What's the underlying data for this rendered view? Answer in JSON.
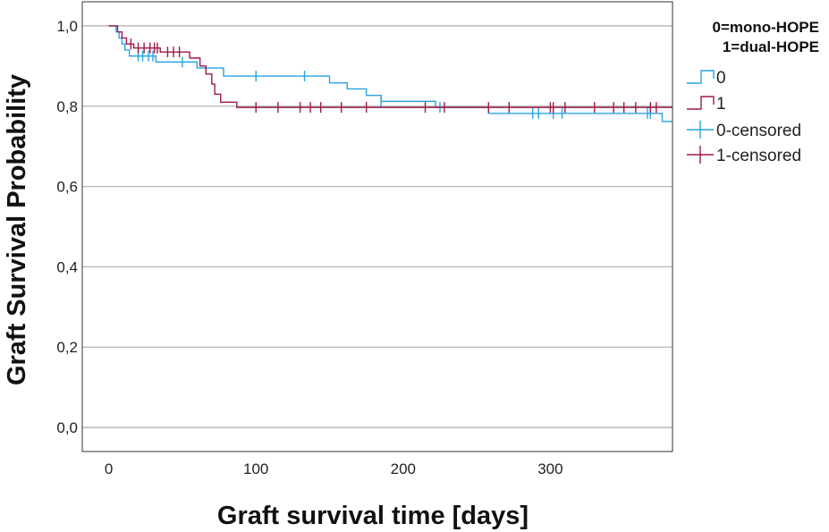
{
  "chart_data": {
    "type": "line",
    "subtype": "kaplan-meier",
    "xlabel": "Graft survival time [days]",
    "ylabel": "Graft Survival Probability",
    "xlim": [
      -18,
      383
    ],
    "ylim": [
      -0.06,
      1.06
    ],
    "x_ticks": [
      "0",
      "100",
      "200",
      "300"
    ],
    "x_tick_values": [
      0,
      100,
      200,
      300
    ],
    "y_ticks": [
      "0,0",
      "0,2",
      "0,4",
      "0,6",
      "0,8",
      "1,0"
    ],
    "y_tick_values": [
      0,
      0.2,
      0.4,
      0.6,
      0.8,
      1.0
    ],
    "grid": "horizontal",
    "legend": {
      "title_line1": "0=mono-HOPE",
      "title_line2": "1=dual-HOPE",
      "entries": [
        "0",
        "1",
        "0-censored",
        "1-censored"
      ],
      "placement": "right"
    },
    "series": [
      {
        "name": "0",
        "color": "#29a3e0",
        "steps": [
          [
            0,
            1.0
          ],
          [
            5,
            0.985
          ],
          [
            7,
            0.97
          ],
          [
            9,
            0.955
          ],
          [
            11,
            0.94
          ],
          [
            14,
            0.925
          ],
          [
            32,
            0.91
          ],
          [
            60,
            0.895
          ],
          [
            78,
            0.875
          ],
          [
            150,
            0.858
          ],
          [
            162,
            0.843
          ],
          [
            175,
            0.827
          ],
          [
            185,
            0.812
          ],
          [
            222,
            0.797
          ],
          [
            258,
            0.782
          ],
          [
            376,
            0.762
          ],
          [
            383,
            0.762
          ]
        ],
        "censored": [
          [
            20,
            0.925
          ],
          [
            23,
            0.925
          ],
          [
            27,
            0.925
          ],
          [
            30,
            0.925
          ],
          [
            50,
            0.91
          ],
          [
            100,
            0.875
          ],
          [
            133,
            0.875
          ],
          [
            185,
            0.812
          ],
          [
            225,
            0.797
          ],
          [
            288,
            0.782
          ],
          [
            292,
            0.782
          ],
          [
            302,
            0.782
          ],
          [
            308,
            0.782
          ],
          [
            366,
            0.782
          ],
          [
            368,
            0.782
          ]
        ]
      },
      {
        "name": "1",
        "color": "#a0184a",
        "steps": [
          [
            0,
            1.0
          ],
          [
            6,
            0.985
          ],
          [
            9,
            0.97
          ],
          [
            12,
            0.955
          ],
          [
            17,
            0.945
          ],
          [
            35,
            0.935
          ],
          [
            55,
            0.92
          ],
          [
            62,
            0.9
          ],
          [
            66,
            0.88
          ],
          [
            70,
            0.855
          ],
          [
            72,
            0.83
          ],
          [
            76,
            0.81
          ],
          [
            87,
            0.797
          ],
          [
            383,
            0.797
          ]
        ],
        "censored": [
          [
            15,
            0.955
          ],
          [
            20,
            0.945
          ],
          [
            24,
            0.945
          ],
          [
            28,
            0.945
          ],
          [
            31,
            0.945
          ],
          [
            33,
            0.945
          ],
          [
            40,
            0.935
          ],
          [
            44,
            0.935
          ],
          [
            48,
            0.935
          ],
          [
            100,
            0.797
          ],
          [
            115,
            0.797
          ],
          [
            130,
            0.797
          ],
          [
            137,
            0.797
          ],
          [
            144,
            0.797
          ],
          [
            158,
            0.797
          ],
          [
            175,
            0.797
          ],
          [
            215,
            0.797
          ],
          [
            228,
            0.797
          ],
          [
            258,
            0.797
          ],
          [
            272,
            0.797
          ],
          [
            300,
            0.797
          ],
          [
            302,
            0.797
          ],
          [
            310,
            0.797
          ],
          [
            330,
            0.797
          ],
          [
            343,
            0.797
          ],
          [
            350,
            0.797
          ],
          [
            358,
            0.797
          ],
          [
            368,
            0.797
          ],
          [
            372,
            0.797
          ]
        ]
      }
    ]
  }
}
